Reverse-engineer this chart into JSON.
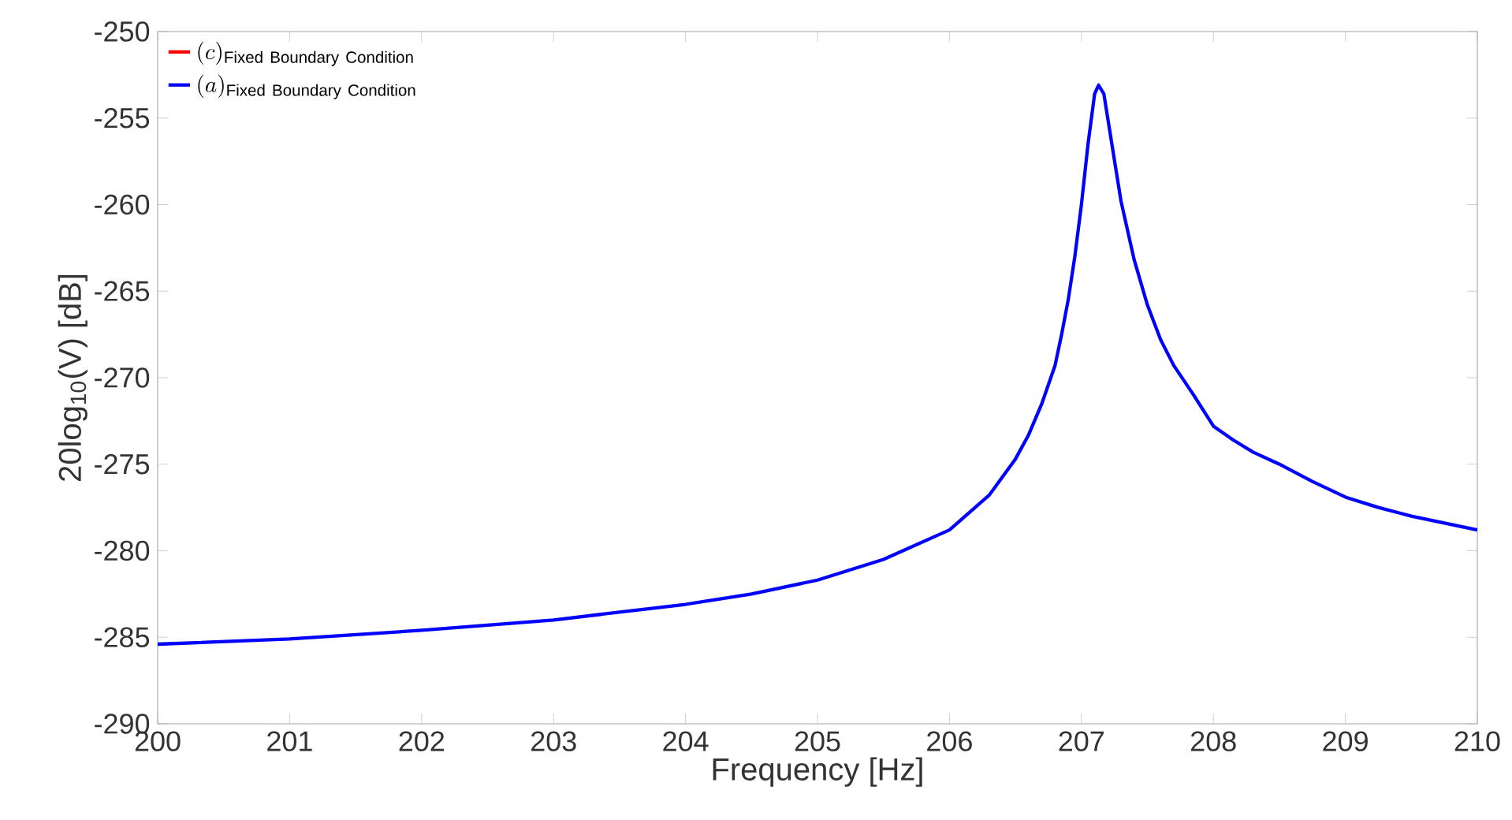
{
  "chart_data": {
    "type": "line",
    "xlabel": "Frequency [Hz]",
    "ylabel": "20log$_{10}$(V) [dB]",
    "xlim": [
      200,
      210
    ],
    "ylim": [
      -290,
      -250
    ],
    "xticks": [
      200,
      201,
      202,
      203,
      204,
      205,
      206,
      207,
      208,
      209,
      210
    ],
    "yticks": [
      -290,
      -285,
      -280,
      -275,
      -270,
      -265,
      -260,
      -255,
      -250
    ],
    "grid": false,
    "legend": "top left",
    "line_style": "solid",
    "marker": "none",
    "x": [
      200,
      201,
      202,
      203,
      204,
      204.5,
      205,
      205.5,
      206,
      206.3,
      206.5,
      206.6,
      206.7,
      206.8,
      206.85,
      206.9,
      206.95,
      207.0,
      207.05,
      207.1,
      207.13,
      207.17,
      207.22,
      207.3,
      207.4,
      207.5,
      207.6,
      207.7,
      207.85,
      208,
      208.15,
      208.3,
      208.5,
      208.75,
      209,
      209.25,
      209.5,
      209.75,
      210
    ],
    "series": [
      {
        "name": "(c)_{\\mathrm{Fixed\\ Boundary\\ Condition}}",
        "color": "#ff0000",
        "values": [
          null,
          null,
          null,
          null,
          null,
          null,
          null,
          null,
          null,
          null,
          null,
          null,
          null,
          null,
          null,
          null,
          null,
          null,
          null,
          null,
          null,
          null,
          null,
          null,
          null,
          null,
          null,
          null,
          null,
          null,
          null,
          null,
          null,
          null,
          null,
          null,
          null,
          null,
          null
        ]
      },
      {
        "name": "(a)_{\\mathrm{Fixed\\ Boundary\\ Condition}}",
        "color": "#0000ff",
        "values": [
          -285.4,
          -285.1,
          -284.6,
          -284.0,
          -283.1,
          -282.5,
          -281.7,
          -280.5,
          -278.8,
          -276.8,
          -274.7,
          -273.3,
          -271.5,
          -269.3,
          -267.5,
          -265.5,
          -263,
          -260,
          -256.5,
          -253.6,
          -253.1,
          -253.6,
          -256,
          -259.8,
          -263.2,
          -265.8,
          -267.8,
          -269.3,
          -271.0,
          -272.8,
          -273.6,
          -274.3,
          -275.0,
          -276.0,
          -276.9,
          -277.5,
          -278.0,
          -278.4,
          -278.8
        ]
      }
    ]
  }
}
